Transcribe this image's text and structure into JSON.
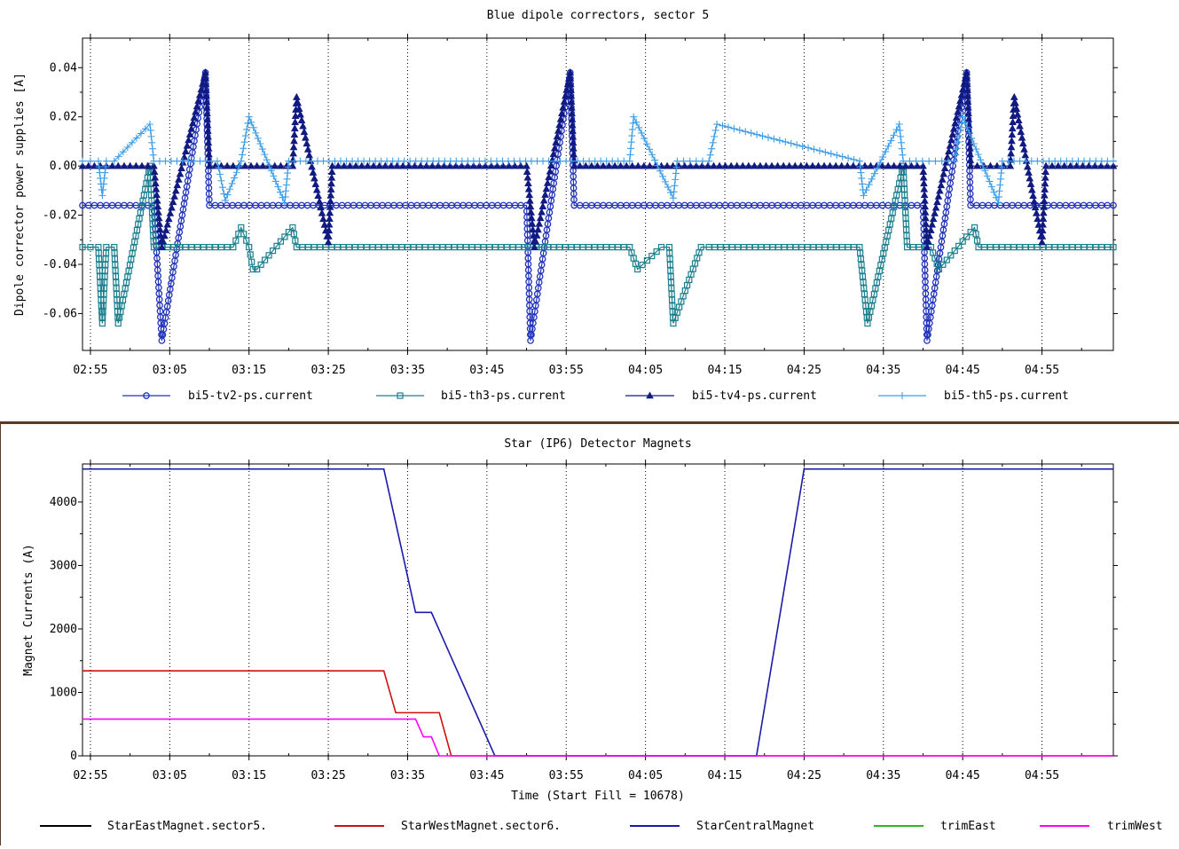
{
  "chart_data": [
    {
      "type": "line",
      "title": "Blue dipole correctors, sector 5",
      "xlabel": "",
      "ylabel": "Dipole corrector power supplies [A]",
      "x_ticks": [
        "02:55",
        "03:05",
        "03:15",
        "03:25",
        "03:35",
        "03:45",
        "03:55",
        "04:05",
        "04:15",
        "04:25",
        "04:35",
        "04:45",
        "04:55"
      ],
      "xlim": [
        "02:54",
        "05:04"
      ],
      "ylim": [
        -0.075,
        0.052
      ],
      "y_ticks": [
        0.04,
        0.02,
        0.0,
        -0.02,
        -0.04,
        -0.06
      ],
      "y_tick_labels": [
        "0.04",
        "0.02",
        "0.00",
        "-0.02",
        "-0.04",
        "-0.06"
      ],
      "grid": "x-dotted",
      "legend_position": "bottom",
      "series": [
        {
          "name": "bi5-tv2-ps.current",
          "color": "#2233bb",
          "marker": "circle",
          "x": [
            "02:54",
            "03:03",
            "03:04",
            "03:09:30",
            "03:10",
            "03:50",
            "03:50:30",
            "03:55:30",
            "03:56",
            "04:40",
            "04:40:30",
            "04:45:30",
            "04:46",
            "05:04"
          ],
          "values": [
            -0.016,
            -0.016,
            -0.071,
            0.038,
            -0.016,
            -0.016,
            -0.071,
            0.038,
            -0.016,
            -0.016,
            -0.071,
            0.038,
            -0.016,
            -0.016
          ]
        },
        {
          "name": "bi5-th3-ps.current",
          "color": "#1a7f8e",
          "marker": "square",
          "x": [
            "02:54",
            "02:56",
            "02:56:30",
            "02:57",
            "02:58",
            "02:58:30",
            "03:02:30",
            "03:03",
            "03:04",
            "03:13",
            "03:14",
            "03:15",
            "03:15:30",
            "03:16",
            "03:20:30",
            "03:21",
            "04:03",
            "04:04",
            "04:07",
            "04:08",
            "04:08:30",
            "04:12",
            "04:13",
            "04:32",
            "04:33",
            "04:37:30",
            "04:38",
            "04:41",
            "04:42",
            "04:46:30",
            "04:47",
            "05:04"
          ],
          "values": [
            -0.033,
            -0.033,
            -0.064,
            -0.033,
            -0.033,
            -0.064,
            0.0,
            -0.033,
            -0.033,
            -0.033,
            -0.025,
            -0.033,
            -0.042,
            -0.042,
            -0.025,
            -0.033,
            -0.033,
            -0.042,
            -0.033,
            -0.033,
            -0.064,
            -0.033,
            -0.033,
            -0.033,
            -0.064,
            0.0,
            -0.033,
            -0.033,
            -0.042,
            -0.025,
            -0.033,
            -0.033
          ]
        },
        {
          "name": "bi5-tv4-ps.current",
          "color": "#101a80",
          "marker": "triangle",
          "x": [
            "02:54",
            "03:03",
            "03:04",
            "03:09:30",
            "03:10",
            "03:20:30",
            "03:21",
            "03:25",
            "03:25:30",
            "03:50",
            "03:51",
            "03:55:30",
            "03:56",
            "04:40",
            "04:40:30",
            "04:45:30",
            "04:46",
            "04:51",
            "04:51:30",
            "04:55",
            "04:55:30",
            "05:04"
          ],
          "values": [
            0.0,
            0.0,
            -0.033,
            0.038,
            0.0,
            0.0,
            0.028,
            -0.031,
            0.0,
            0.0,
            -0.033,
            0.038,
            0.0,
            0.0,
            -0.033,
            0.038,
            0.0,
            0.0,
            0.028,
            -0.031,
            0.0,
            0.0
          ]
        },
        {
          "name": "bi5-th5-ps.current",
          "color": "#3f9ee8",
          "marker": "plus",
          "x": [
            "02:54",
            "02:56",
            "02:56:30",
            "02:57",
            "02:58",
            "03:02:30",
            "03:03",
            "03:11",
            "03:12",
            "03:14",
            "03:15",
            "03:19:30",
            "03:20",
            "04:03",
            "04:03:30",
            "04:08:30",
            "04:09",
            "04:13",
            "04:14",
            "04:32",
            "04:32:30",
            "04:37",
            "04:37:30",
            "04:44",
            "04:45",
            "04:49:30",
            "04:50",
            "05:04"
          ],
          "values": [
            0.002,
            0.002,
            -0.012,
            0.002,
            0.002,
            0.017,
            0.002,
            0.002,
            -0.014,
            0.002,
            0.02,
            -0.015,
            0.002,
            0.002,
            0.02,
            -0.013,
            0.002,
            0.002,
            0.017,
            0.002,
            -0.012,
            0.017,
            0.002,
            0.002,
            0.02,
            -0.015,
            0.002,
            0.002
          ]
        }
      ]
    },
    {
      "type": "line",
      "title": "Star (IP6) Detector Magnets",
      "xlabel": "Time (Start Fill = 10678)",
      "ylabel": "Magnet Currents (A)",
      "x_ticks": [
        "02:55",
        "03:05",
        "03:15",
        "03:25",
        "03:35",
        "03:45",
        "03:55",
        "04:05",
        "04:15",
        "04:25",
        "04:35",
        "04:45",
        "04:55"
      ],
      "xlim": [
        "02:54",
        "05:04"
      ],
      "ylim": [
        0,
        4600
      ],
      "y_ticks": [
        0,
        1000,
        2000,
        3000,
        4000
      ],
      "y_tick_labels": [
        "0",
        "1000",
        "2000",
        "3000",
        "4000"
      ],
      "grid": "x-dotted",
      "legend_position": "bottom",
      "series": [
        {
          "name": "StarEastMagnet.sector5.",
          "color": "#000000",
          "x": [],
          "values": []
        },
        {
          "name": "StarWestMagnet.sector6.",
          "color": "#cc1111",
          "x": [
            "02:54",
            "03:32",
            "03:33:30",
            "03:39",
            "03:40:30",
            "05:04"
          ],
          "values": [
            1340,
            1340,
            680,
            680,
            0,
            0
          ]
        },
        {
          "name": "StarCentralMagnet",
          "color": "#1a1aaa",
          "x": [
            "02:54",
            "03:32",
            "03:36",
            "03:38",
            "03:46",
            "04:19",
            "04:25",
            "05:04"
          ],
          "values": [
            4520,
            4520,
            2260,
            2260,
            0,
            0,
            4520,
            4520
          ],
          "overlay_note": ""
        },
        {
          "name": "trimEast",
          "color": "#22bb22",
          "x": [],
          "values": []
        },
        {
          "name": "trimWest",
          "color": "#ff00ff",
          "x": [
            "02:54",
            "03:36",
            "03:37",
            "03:38",
            "03:39",
            "05:04"
          ],
          "values": [
            580,
            580,
            300,
            300,
            0,
            0
          ]
        }
      ]
    }
  ]
}
